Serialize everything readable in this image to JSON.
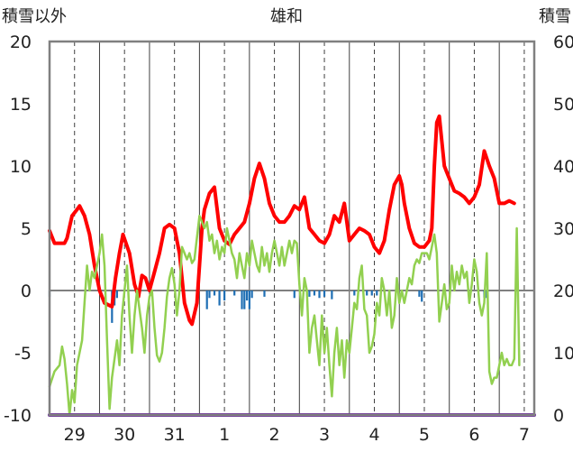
{
  "chart_data": {
    "type": "line",
    "title": "雄和",
    "ylabel_left": "積雪以外",
    "ylabel_right": "積雪",
    "y_left": {
      "min": -10,
      "max": 20,
      "ticks": [
        20,
        15,
        10,
        5,
        0,
        -5,
        -10
      ]
    },
    "y_right": {
      "min": 0,
      "max": 60,
      "ticks": [
        60,
        50,
        40,
        30,
        20,
        10,
        0
      ]
    },
    "x_range": [
      0,
      9.7
    ],
    "day_labels": [
      "29",
      "30",
      "31",
      "1",
      "2",
      "3",
      "4",
      "5",
      "6",
      "7"
    ],
    "colors": {
      "red": "#ff0000",
      "green": "#92d050",
      "blue": "#1f6fb4",
      "purple": "#7030a0",
      "frame": "#808080"
    },
    "series": [
      {
        "color": "red",
        "axis": "left",
        "points": [
          [
            0,
            4.8
          ],
          [
            0.1,
            3.8
          ],
          [
            0.3,
            3.8
          ],
          [
            0.35,
            4.2
          ],
          [
            0.45,
            6
          ],
          [
            0.55,
            6.5
          ],
          [
            0.6,
            6.8
          ],
          [
            0.7,
            6
          ],
          [
            0.8,
            4.5
          ],
          [
            0.9,
            2
          ],
          [
            1.0,
            0
          ],
          [
            1.1,
            -1
          ],
          [
            1.25,
            -1.3
          ],
          [
            1.32,
            1
          ],
          [
            1.4,
            3
          ],
          [
            1.47,
            4.5
          ],
          [
            1.6,
            3
          ],
          [
            1.7,
            0.5
          ],
          [
            1.78,
            -0.5
          ],
          [
            1.85,
            1.2
          ],
          [
            1.92,
            1
          ],
          [
            2.0,
            0
          ],
          [
            2.1,
            1.5
          ],
          [
            2.2,
            3
          ],
          [
            2.3,
            5
          ],
          [
            2.4,
            5.3
          ],
          [
            2.5,
            5
          ],
          [
            2.6,
            3
          ],
          [
            2.65,
            1
          ],
          [
            2.7,
            -1
          ],
          [
            2.8,
            -2.4
          ],
          [
            2.85,
            -2.7
          ],
          [
            2.95,
            -1
          ],
          [
            3.0,
            2
          ],
          [
            3.05,
            5
          ],
          [
            3.1,
            6.5
          ],
          [
            3.2,
            7.8
          ],
          [
            3.3,
            8.3
          ],
          [
            3.4,
            5
          ],
          [
            3.5,
            4
          ],
          [
            3.6,
            3.7
          ],
          [
            3.7,
            4.5
          ],
          [
            3.8,
            5
          ],
          [
            3.9,
            5.5
          ],
          [
            4.0,
            7
          ],
          [
            4.1,
            9
          ],
          [
            4.2,
            10.2
          ],
          [
            4.3,
            9
          ],
          [
            4.4,
            7
          ],
          [
            4.5,
            6
          ],
          [
            4.6,
            5.5
          ],
          [
            4.7,
            5.5
          ],
          [
            4.8,
            6
          ],
          [
            4.9,
            6.8
          ],
          [
            5.0,
            6.5
          ],
          [
            5.1,
            7.5
          ],
          [
            5.2,
            5
          ],
          [
            5.3,
            4.5
          ],
          [
            5.4,
            4
          ],
          [
            5.5,
            3.8
          ],
          [
            5.6,
            4.5
          ],
          [
            5.7,
            6
          ],
          [
            5.8,
            5.5
          ],
          [
            5.9,
            7
          ],
          [
            6.0,
            4
          ],
          [
            6.1,
            4.5
          ],
          [
            6.2,
            5
          ],
          [
            6.3,
            4.8
          ],
          [
            6.4,
            4.5
          ],
          [
            6.5,
            3.5
          ],
          [
            6.6,
            3
          ],
          [
            6.7,
            4
          ],
          [
            6.8,
            6.5
          ],
          [
            6.9,
            8.5
          ],
          [
            7.0,
            9.2
          ],
          [
            7.05,
            8.5
          ],
          [
            7.1,
            7
          ],
          [
            7.2,
            5
          ],
          [
            7.3,
            3.8
          ],
          [
            7.4,
            3.5
          ],
          [
            7.5,
            3.5
          ],
          [
            7.6,
            4
          ],
          [
            7.65,
            5
          ],
          [
            7.7,
            10
          ],
          [
            7.75,
            13.5
          ],
          [
            7.8,
            14
          ],
          [
            7.85,
            12
          ],
          [
            7.9,
            10
          ],
          [
            7.95,
            9.5
          ],
          [
            8.05,
            8.5
          ],
          [
            8.1,
            8
          ],
          [
            8.2,
            7.8
          ],
          [
            8.3,
            7.5
          ],
          [
            8.4,
            7
          ],
          [
            8.5,
            7.5
          ],
          [
            8.6,
            8.5
          ],
          [
            8.7,
            11.2
          ],
          [
            8.8,
            10
          ],
          [
            8.9,
            9
          ],
          [
            9.0,
            7
          ],
          [
            9.1,
            7
          ],
          [
            9.2,
            7.2
          ],
          [
            9.3,
            7
          ]
        ]
      },
      {
        "color": "green",
        "axis": "left",
        "points": [
          [
            0,
            -7.7
          ],
          [
            0.1,
            -6.5
          ],
          [
            0.2,
            -6
          ],
          [
            0.25,
            -4.5
          ],
          [
            0.3,
            -5.5
          ],
          [
            0.35,
            -7.5
          ],
          [
            0.4,
            -10
          ],
          [
            0.45,
            -8
          ],
          [
            0.5,
            -9
          ],
          [
            0.55,
            -6
          ],
          [
            0.6,
            -5
          ],
          [
            0.65,
            -4
          ],
          [
            0.7,
            -1
          ],
          [
            0.75,
            2
          ],
          [
            0.8,
            0
          ],
          [
            0.85,
            1.5
          ],
          [
            0.9,
            1
          ],
          [
            0.95,
            2
          ],
          [
            1.0,
            3
          ],
          [
            1.05,
            4.5
          ],
          [
            1.1,
            2
          ],
          [
            1.15,
            -4
          ],
          [
            1.2,
            -9.5
          ],
          [
            1.25,
            -7
          ],
          [
            1.3,
            -5.5
          ],
          [
            1.35,
            -4
          ],
          [
            1.4,
            -6
          ],
          [
            1.45,
            -2
          ],
          [
            1.5,
            0
          ],
          [
            1.55,
            2
          ],
          [
            1.6,
            -2
          ],
          [
            1.65,
            -5
          ],
          [
            1.7,
            -2
          ],
          [
            1.75,
            0
          ],
          [
            1.8,
            -1.5
          ],
          [
            1.85,
            -3
          ],
          [
            1.9,
            -5
          ],
          [
            1.95,
            -2
          ],
          [
            2.0,
            -0.5
          ],
          [
            2.05,
            0
          ],
          [
            2.1,
            -3
          ],
          [
            2.15,
            -5.2
          ],
          [
            2.2,
            -5.7
          ],
          [
            2.25,
            -5
          ],
          [
            2.3,
            -3
          ],
          [
            2.35,
            -0.5
          ],
          [
            2.4,
            1
          ],
          [
            2.45,
            1.8
          ],
          [
            2.5,
            0.5
          ],
          [
            2.55,
            -2
          ],
          [
            2.6,
            0
          ],
          [
            2.65,
            3.5
          ],
          [
            2.7,
            3
          ],
          [
            2.75,
            2.5
          ],
          [
            2.8,
            3
          ],
          [
            2.85,
            2.2
          ],
          [
            2.9,
            2.5
          ],
          [
            3.0,
            6
          ],
          [
            3.05,
            5.5
          ],
          [
            3.1,
            5
          ],
          [
            3.15,
            5.5
          ],
          [
            3.2,
            4
          ],
          [
            3.25,
            4.5
          ],
          [
            3.3,
            3
          ],
          [
            3.35,
            4
          ],
          [
            3.4,
            2.5
          ],
          [
            3.45,
            3.5
          ],
          [
            3.5,
            3
          ],
          [
            3.55,
            5
          ],
          [
            3.6,
            4
          ],
          [
            3.65,
            3
          ],
          [
            3.7,
            2.5
          ],
          [
            3.75,
            1
          ],
          [
            3.8,
            3
          ],
          [
            3.85,
            2
          ],
          [
            3.9,
            1
          ],
          [
            3.95,
            3
          ],
          [
            4.0,
            2
          ],
          [
            4.05,
            4
          ],
          [
            4.1,
            3
          ],
          [
            4.15,
            2
          ],
          [
            4.2,
            1.5
          ],
          [
            4.25,
            3.5
          ],
          [
            4.3,
            2
          ],
          [
            4.35,
            3
          ],
          [
            4.4,
            1.5
          ],
          [
            4.45,
            3
          ],
          [
            4.5,
            4
          ],
          [
            4.55,
            3
          ],
          [
            4.6,
            2
          ],
          [
            4.65,
            3.5
          ],
          [
            4.7,
            2
          ],
          [
            4.75,
            3
          ],
          [
            4.8,
            4
          ],
          [
            4.85,
            3
          ],
          [
            4.9,
            4
          ],
          [
            4.95,
            3.8
          ],
          [
            5.0,
            0.5
          ],
          [
            5.05,
            -2
          ],
          [
            5.1,
            1
          ],
          [
            5.15,
            0
          ],
          [
            5.2,
            -5
          ],
          [
            5.25,
            -3
          ],
          [
            5.3,
            -2
          ],
          [
            5.35,
            -4
          ],
          [
            5.4,
            -6
          ],
          [
            5.45,
            -2
          ],
          [
            5.5,
            -5
          ],
          [
            5.55,
            -3
          ],
          [
            5.6,
            -6
          ],
          [
            5.65,
            -8.5
          ],
          [
            5.7,
            -5
          ],
          [
            5.75,
            -3
          ],
          [
            5.8,
            -6
          ],
          [
            5.85,
            -4
          ],
          [
            5.9,
            -7
          ],
          [
            5.95,
            -4
          ],
          [
            6.0,
            -5
          ],
          [
            6.05,
            -3
          ],
          [
            6.1,
            -1
          ],
          [
            6.15,
            -1.5
          ],
          [
            6.2,
            1
          ],
          [
            6.25,
            2
          ],
          [
            6.3,
            -1.5
          ],
          [
            6.35,
            -2
          ],
          [
            6.4,
            -5
          ],
          [
            6.45,
            -4.5
          ],
          [
            6.5,
            -3.5
          ],
          [
            6.55,
            -1
          ],
          [
            6.6,
            -2
          ],
          [
            6.65,
            1
          ],
          [
            6.7,
            0
          ],
          [
            6.75,
            -2
          ],
          [
            6.8,
            0
          ],
          [
            6.85,
            -3
          ],
          [
            6.9,
            -2
          ],
          [
            6.95,
            1
          ],
          [
            7.0,
            -1
          ],
          [
            7.05,
            0
          ],
          [
            7.1,
            -1
          ],
          [
            7.15,
            0
          ],
          [
            7.2,
            1
          ],
          [
            7.25,
            0.5
          ],
          [
            7.3,
            2
          ],
          [
            7.35,
            2.5
          ],
          [
            7.4,
            2.2
          ],
          [
            7.45,
            3
          ],
          [
            7.5,
            3
          ],
          [
            7.55,
            3
          ],
          [
            7.6,
            2.5
          ],
          [
            7.65,
            3.5
          ],
          [
            7.7,
            4.5
          ],
          [
            7.75,
            3
          ],
          [
            7.8,
            -2.5
          ],
          [
            7.85,
            -1
          ],
          [
            7.9,
            0.5
          ],
          [
            7.95,
            -1.5
          ],
          [
            8.0,
            -1
          ],
          [
            8.05,
            2
          ],
          [
            8.1,
            0
          ],
          [
            8.15,
            1.5
          ],
          [
            8.2,
            0.5
          ],
          [
            8.25,
            2
          ],
          [
            8.3,
            1
          ],
          [
            8.35,
            1.5
          ],
          [
            8.4,
            -1
          ],
          [
            8.45,
            0.5
          ],
          [
            8.5,
            2.5
          ],
          [
            8.55,
            1.5
          ],
          [
            8.6,
            -1
          ],
          [
            8.65,
            -2
          ],
          [
            8.7,
            -1
          ],
          [
            8.75,
            3
          ],
          [
            8.8,
            -6.5
          ],
          [
            8.85,
            -7.5
          ],
          [
            8.9,
            -7
          ],
          [
            8.95,
            -7
          ],
          [
            9.0,
            -6
          ],
          [
            9.05,
            -5
          ],
          [
            9.1,
            -6
          ],
          [
            9.15,
            -5.5
          ],
          [
            9.2,
            -6
          ],
          [
            9.25,
            -6
          ],
          [
            9.3,
            -5.5
          ],
          [
            9.35,
            5
          ],
          [
            9.4,
            -6
          ]
        ]
      },
      {
        "color": "purple",
        "axis": "right",
        "points": [
          [
            0,
            0
          ],
          [
            9.7,
            0
          ]
        ]
      }
    ],
    "bars": {
      "color": "blue",
      "axis": "left",
      "baseline": 0,
      "points": [
        [
          0.0,
          -0.5
        ],
        [
          1.25,
          -2.6
        ],
        [
          1.3,
          -1.2
        ],
        [
          1.35,
          -0.6
        ],
        [
          1.75,
          -0.3
        ],
        [
          2.95,
          -0.3
        ],
        [
          3.15,
          -1.5
        ],
        [
          3.2,
          -0.6
        ],
        [
          3.3,
          -0.4
        ],
        [
          3.4,
          -1.2
        ],
        [
          3.5,
          -0.8
        ],
        [
          3.7,
          -0.4
        ],
        [
          3.85,
          -1.5
        ],
        [
          3.9,
          -1.5
        ],
        [
          3.95,
          -0.8
        ],
        [
          4.0,
          -1.5
        ],
        [
          4.05,
          -0.6
        ],
        [
          4.3,
          -0.5
        ],
        [
          4.9,
          -0.6
        ],
        [
          5.2,
          -0.5
        ],
        [
          5.3,
          -0.4
        ],
        [
          5.4,
          -0.6
        ],
        [
          5.5,
          -0.5
        ],
        [
          5.65,
          -0.7
        ],
        [
          6.1,
          -0.4
        ],
        [
          6.35,
          -0.4
        ],
        [
          6.45,
          -0.4
        ],
        [
          6.55,
          -0.4
        ],
        [
          7.4,
          -0.5
        ],
        [
          7.45,
          -0.9
        ],
        [
          8.7,
          -0.6
        ],
        [
          8.75,
          -0.6
        ]
      ]
    }
  }
}
